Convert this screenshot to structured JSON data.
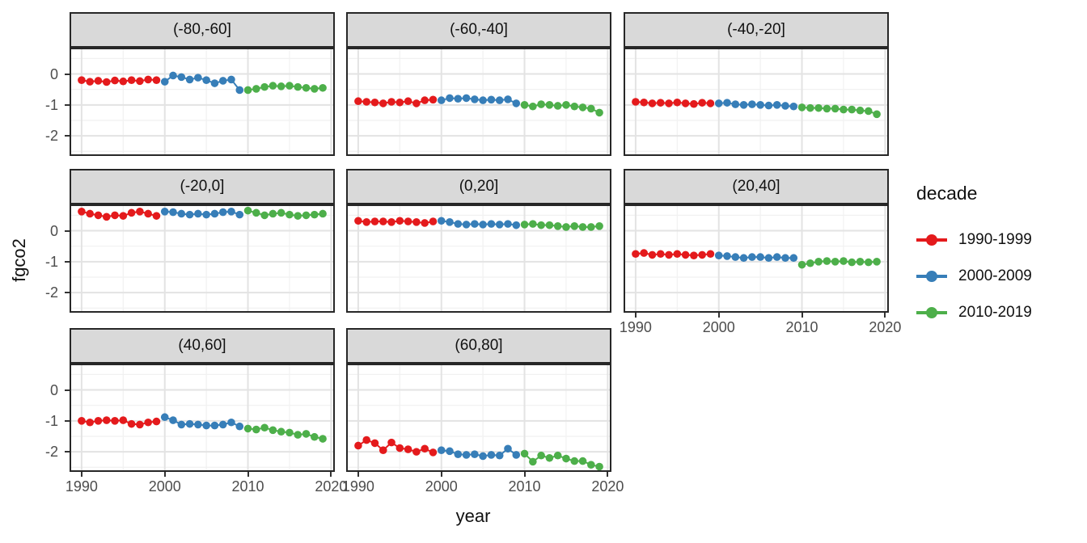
{
  "figure": {
    "xlabel": "year",
    "ylabel": "fgco2"
  },
  "legend": {
    "title": "decade",
    "position": "right"
  },
  "style": {
    "strip_bg": "#D9D9D9",
    "panel_border": "#272727",
    "grid_major": "#E3E3E3",
    "grid_minor": "#F1F1F1",
    "tick_color": "#333333",
    "axis_text_color": "#4D4D4D"
  },
  "chart_data": {
    "type": "scatter",
    "title": "",
    "xlabel": "year",
    "ylabel": "fgco2",
    "facet_variable": "latitude band",
    "series_variable": "decade",
    "grid": true,
    "legend_position": "right",
    "xlim": [
      1988.55,
      2020.45
    ],
    "ylim": [
      -2.65,
      0.85
    ],
    "x_ticks": [
      1990,
      2000,
      2010,
      2020
    ],
    "x_minor": [
      1995,
      2005,
      2015
    ],
    "y_ticks": [
      0,
      -1,
      -2
    ],
    "y_minor": [
      0.5,
      -0.5,
      -1.5,
      -2.5
    ],
    "x": [
      1990,
      1991,
      1992,
      1993,
      1994,
      1995,
      1996,
      1997,
      1998,
      1999,
      2000,
      2001,
      2002,
      2003,
      2004,
      2005,
      2006,
      2007,
      2008,
      2009,
      2010,
      2011,
      2012,
      2013,
      2014,
      2015,
      2016,
      2017,
      2018,
      2019
    ],
    "series": [
      {
        "name": "1990-1999",
        "color": "#E41A1C",
        "x_range": [
          1990,
          1999
        ]
      },
      {
        "name": "2000-2009",
        "color": "#377EB8",
        "x_range": [
          2000,
          2009
        ]
      },
      {
        "name": "2010-2019",
        "color": "#4DAF4A",
        "x_range": [
          2010,
          2019
        ]
      }
    ],
    "facets": [
      {
        "label": "(-80,-60]",
        "values": [
          -0.2,
          -0.25,
          -0.22,
          -0.26,
          -0.21,
          -0.24,
          -0.2,
          -0.23,
          -0.18,
          -0.2,
          -0.25,
          -0.05,
          -0.1,
          -0.18,
          -0.12,
          -0.2,
          -0.3,
          -0.22,
          -0.18,
          -0.52,
          -0.52,
          -0.48,
          -0.42,
          -0.38,
          -0.4,
          -0.38,
          -0.42,
          -0.45,
          -0.48,
          -0.45
        ]
      },
      {
        "label": "(-60,-40]",
        "values": [
          -0.88,
          -0.9,
          -0.92,
          -0.95,
          -0.9,
          -0.92,
          -0.88,
          -0.95,
          -0.85,
          -0.83,
          -0.85,
          -0.78,
          -0.8,
          -0.78,
          -0.82,
          -0.85,
          -0.83,
          -0.85,
          -0.82,
          -0.95,
          -1.0,
          -1.05,
          -0.98,
          -1.0,
          -1.03,
          -1.0,
          -1.05,
          -1.08,
          -1.12,
          -1.25
        ]
      },
      {
        "label": "(-40,-20]",
        "values": [
          -0.9,
          -0.92,
          -0.95,
          -0.93,
          -0.95,
          -0.92,
          -0.95,
          -0.97,
          -0.93,
          -0.95,
          -0.95,
          -0.93,
          -0.98,
          -1.0,
          -0.98,
          -1.0,
          -1.02,
          -1.0,
          -1.03,
          -1.05,
          -1.08,
          -1.1,
          -1.1,
          -1.12,
          -1.12,
          -1.15,
          -1.15,
          -1.18,
          -1.2,
          -1.3
        ]
      },
      {
        "label": "(-20,0]",
        "values": [
          0.62,
          0.55,
          0.5,
          0.45,
          0.5,
          0.48,
          0.58,
          0.62,
          0.55,
          0.48,
          0.62,
          0.6,
          0.55,
          0.52,
          0.55,
          0.52,
          0.55,
          0.6,
          0.62,
          0.52,
          0.65,
          0.58,
          0.5,
          0.55,
          0.58,
          0.52,
          0.48,
          0.5,
          0.52,
          0.55
        ]
      },
      {
        "label": "(0,20]",
        "values": [
          0.32,
          0.28,
          0.3,
          0.3,
          0.28,
          0.32,
          0.3,
          0.28,
          0.25,
          0.3,
          0.32,
          0.28,
          0.22,
          0.2,
          0.22,
          0.2,
          0.22,
          0.2,
          0.22,
          0.18,
          0.2,
          0.22,
          0.18,
          0.18,
          0.15,
          0.12,
          0.15,
          0.12,
          0.12,
          0.15
        ]
      },
      {
        "label": "(20,40]",
        "values": [
          -0.75,
          -0.72,
          -0.78,
          -0.75,
          -0.78,
          -0.75,
          -0.78,
          -0.8,
          -0.78,
          -0.75,
          -0.8,
          -0.82,
          -0.85,
          -0.88,
          -0.85,
          -0.85,
          -0.88,
          -0.85,
          -0.88,
          -0.88,
          -1.1,
          -1.05,
          -1.0,
          -0.98,
          -1.0,
          -0.98,
          -1.02,
          -1.0,
          -1.02,
          -1.0
        ]
      },
      {
        "label": "(40,60]",
        "values": [
          -1.0,
          -1.05,
          -1.0,
          -0.98,
          -1.0,
          -0.98,
          -1.1,
          -1.12,
          -1.05,
          -1.02,
          -0.88,
          -0.98,
          -1.12,
          -1.1,
          -1.12,
          -1.15,
          -1.15,
          -1.12,
          -1.05,
          -1.18,
          -1.25,
          -1.28,
          -1.22,
          -1.3,
          -1.35,
          -1.38,
          -1.45,
          -1.42,
          -1.52,
          -1.58
        ]
      },
      {
        "label": "(60,80]",
        "values": [
          -1.8,
          -1.62,
          -1.72,
          -1.95,
          -1.7,
          -1.88,
          -1.92,
          -2.0,
          -1.9,
          -2.02,
          -1.95,
          -1.98,
          -2.08,
          -2.1,
          -2.08,
          -2.14,
          -2.1,
          -2.12,
          -1.9,
          -2.1,
          -2.06,
          -2.32,
          -2.12,
          -2.2,
          -2.12,
          -2.22,
          -2.3,
          -2.3,
          -2.42,
          -2.48
        ]
      }
    ]
  }
}
